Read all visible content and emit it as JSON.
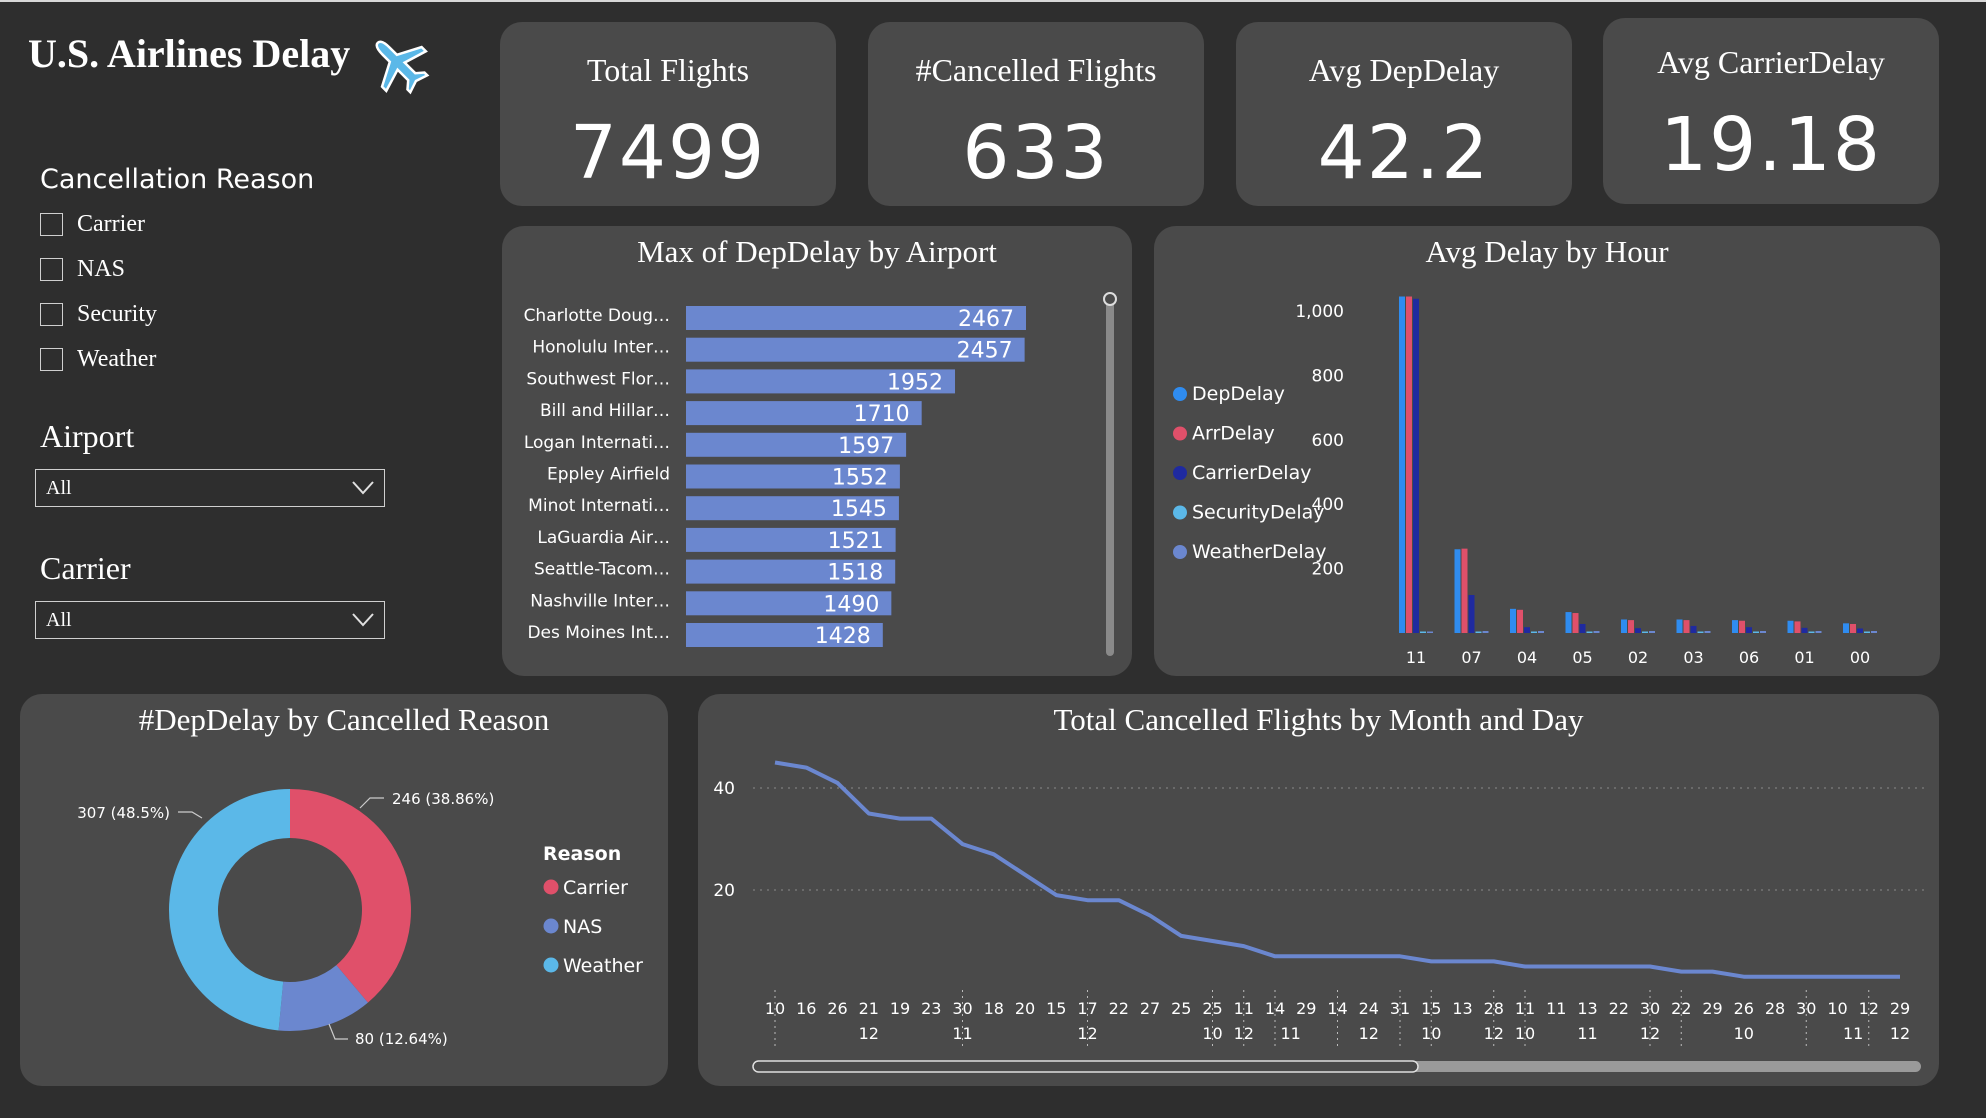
{
  "header": {
    "title": "U.S. Airlines Delay"
  },
  "kpis": [
    {
      "label": "Total Flights",
      "value": "7499"
    },
    {
      "label": "#Cancelled Flights",
      "value": "633"
    },
    {
      "label": "Avg DepDelay",
      "value": "42.2"
    },
    {
      "label": "Avg CarrierDelay",
      "value": "19.18"
    }
  ],
  "slicers": {
    "cancellation": {
      "label": "Cancellation Reason",
      "options": [
        "Carrier",
        "NAS",
        "Security",
        "Weather"
      ]
    },
    "airport": {
      "label": "Airport",
      "value": "All"
    },
    "carrier": {
      "label": "Carrier",
      "value": "All"
    }
  },
  "colors": {
    "bar": "#6b87cf",
    "dep": "#2f8cf0",
    "arr": "#e0506a",
    "carrier": "#1f2aa0",
    "security": "#5bb8e8",
    "weather": "#6b87cf",
    "line": "#6b87cf",
    "donut_carrier": "#e0506a",
    "donut_nas": "#6b87cf",
    "donut_weather": "#5bb8e8"
  },
  "chart_data": [
    {
      "type": "bar",
      "orientation": "horizontal",
      "title": "Max of DepDelay by Airport",
      "categories": [
        "Charlotte Doug…",
        "Honolulu Inter…",
        "Southwest Flor…",
        "Bill and Hillar…",
        "Logan Internati…",
        "Eppley Airfield",
        "Minot Internati…",
        "LaGuardia Air…",
        "Seattle-Tacom…",
        "Nashville Inter…",
        "Des Moines Int…"
      ],
      "values": [
        2467,
        2457,
        1952,
        1710,
        1597,
        1552,
        1545,
        1521,
        1518,
        1490,
        1428
      ]
    },
    {
      "type": "bar",
      "title": "Avg Delay by Hour",
      "categories": [
        "11",
        "07",
        "04",
        "05",
        "02",
        "03",
        "06",
        "01",
        "00"
      ],
      "yticks": [
        "200",
        "400",
        "600",
        "800",
        "1,000"
      ],
      "ylim": [
        0,
        1000
      ],
      "series": [
        {
          "name": "DepDelay",
          "values": [
            1045,
            260,
            75,
            65,
            42,
            42,
            40,
            38,
            30
          ]
        },
        {
          "name": "ArrDelay",
          "values": [
            1045,
            262,
            72,
            62,
            40,
            40,
            38,
            36,
            28
          ]
        },
        {
          "name": "CarrierDelay",
          "values": [
            1038,
            118,
            18,
            28,
            15,
            22,
            18,
            16,
            14
          ]
        },
        {
          "name": "SecurityDelay",
          "values": [
            0,
            0,
            0,
            0,
            0,
            0,
            0,
            0,
            0
          ]
        },
        {
          "name": "WeatherDelay",
          "values": [
            0,
            5,
            3,
            2,
            2,
            2,
            2,
            2,
            2
          ]
        }
      ]
    },
    {
      "type": "pie",
      "title": "#DepDelay by Cancelled Reason",
      "legend_title": "Reason",
      "slices": [
        {
          "name": "Carrier",
          "value": 246,
          "label": "246 (38.86%)"
        },
        {
          "name": "NAS",
          "value": 80,
          "label": "80 (12.64%)"
        },
        {
          "name": "Weather",
          "value": 307,
          "label": "307 (48.5%)"
        }
      ]
    },
    {
      "type": "line",
      "title": "Total Cancelled Flights by Month and Day",
      "yticks": [
        "20",
        "40"
      ],
      "ylim": [
        0,
        50
      ],
      "values": [
        45,
        44,
        41,
        35,
        34,
        34,
        29,
        27,
        23,
        19,
        18,
        18,
        15,
        11,
        10,
        9,
        7,
        7,
        7,
        7,
        7,
        6,
        6,
        6,
        5,
        5,
        5,
        5,
        5,
        4,
        4,
        3,
        3,
        3,
        3,
        3,
        3
      ],
      "x_days": [
        "10",
        "16",
        "26",
        "21",
        "19",
        "23",
        "30",
        "18",
        "20",
        "15",
        "17",
        "22",
        "27",
        "25",
        "25",
        "11",
        "14",
        "29",
        "14",
        "24",
        "31",
        "15",
        "13",
        "28",
        "11",
        "11",
        "13",
        "22",
        "30",
        "22",
        "29",
        "26",
        "28",
        "30",
        "10",
        "12",
        "29"
      ],
      "x_months": [
        {
          "label": "12",
          "index": 3
        },
        {
          "label": "11",
          "index": 6
        },
        {
          "label": "12",
          "index": 10
        },
        {
          "label": "10",
          "index": 14
        },
        {
          "label": "12",
          "index": 15
        },
        {
          "label": "11",
          "index": 16.5
        },
        {
          "label": "12",
          "index": 19
        },
        {
          "label": "10",
          "index": 21
        },
        {
          "label": "12",
          "index": 23
        },
        {
          "label": "10",
          "index": 24
        },
        {
          "label": "11",
          "index": 26
        },
        {
          "label": "12",
          "index": 28
        },
        {
          "label": "10",
          "index": 31
        },
        {
          "label": "11",
          "index": 34.5
        },
        {
          "label": "12",
          "index": 36
        }
      ]
    }
  ]
}
